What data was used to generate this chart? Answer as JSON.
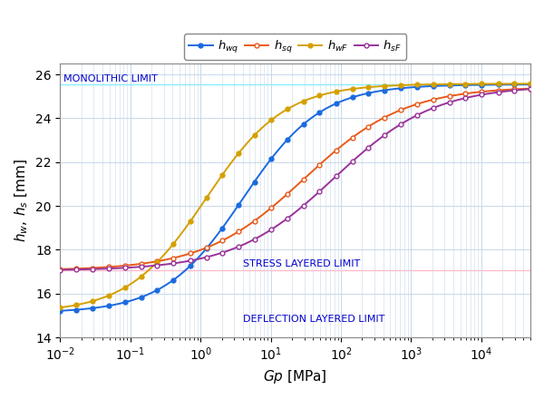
{
  "title": "",
  "xlabel": "$Gp$ [MPa]",
  "ylabel": "$h_w,\\, h_s$ [mm]",
  "xlim": [
    0.01,
    50000
  ],
  "ylim": [
    14,
    26.5
  ],
  "yticks": [
    14,
    16,
    18,
    20,
    22,
    24,
    26
  ],
  "monolithic_limit": 25.55,
  "stress_layered_limit": 17.05,
  "deflection_layered_limit": 15.12,
  "monolithic_label": "MONOLITHIC LIMIT",
  "stress_label": "STRESS LAYERED LIMIT",
  "deflection_label": "DEFLECTION LAYERED LIMIT",
  "label_color": "#0000CC",
  "line_color_monolithic": "#88EEFF",
  "line_color_stress": "#FFBBCC",
  "curves": {
    "hwq": {
      "label": "$h_{wq}$",
      "color": "#1A6AE0",
      "marker": "o",
      "markersize": 3.5,
      "markerfacecolor": "#1A6AE0",
      "start_val": 15.12,
      "end_val": 25.55,
      "inflection": 4.0,
      "steepness": 1.8
    },
    "hsq": {
      "label": "$h_{sq}$",
      "color": "#E85A1A",
      "marker": "o",
      "markersize": 3.5,
      "markerfacecolor": "white",
      "start_val": 17.05,
      "end_val": 25.45,
      "inflection": 30.0,
      "steepness": 1.4
    },
    "hwF": {
      "label": "$h_{wF}$",
      "color": "#D4A000",
      "marker": "o",
      "markersize": 3.5,
      "markerfacecolor": "#D4A000",
      "start_val": 15.12,
      "end_val": 25.58,
      "inflection": 1.2,
      "steepness": 1.8
    },
    "hsF": {
      "label": "$h_{sF}$",
      "color": "#993399",
      "marker": "o",
      "markersize": 3.5,
      "markerfacecolor": "white",
      "start_val": 17.05,
      "end_val": 25.5,
      "inflection": 80.0,
      "steepness": 1.4
    }
  },
  "grid_color": "#C8D8E8",
  "bg_color": "#FFFFFF",
  "legend_fontsize": 9.5,
  "axis_fontsize": 11,
  "tick_fontsize": 10,
  "n_markers": 30
}
